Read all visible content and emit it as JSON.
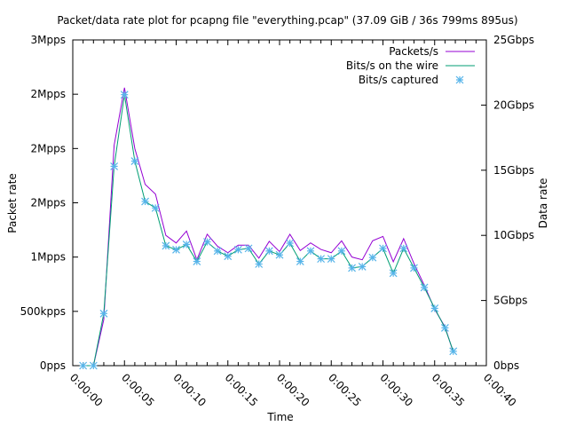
{
  "chart_data": {
    "type": "line",
    "title": "Packet/data rate plot for pcapng file \"everything.pcap\" (37.09 GiB / 36s 799ms 895us)",
    "xlabel": "Time",
    "ylabel": "Packet rate",
    "y2label": "Data rate",
    "xlim": [
      0,
      40
    ],
    "ylim": [
      0,
      3000000
    ],
    "y2lim": [
      0,
      25
    ],
    "grid": false,
    "legend_position": "top-right",
    "x_ticks": [
      0,
      5,
      10,
      15,
      20,
      25,
      30,
      35,
      40
    ],
    "x_tick_labels": [
      "0:00:00",
      "0:00:05",
      "0:00:10",
      "0:00:15",
      "0:00:20",
      "0:00:25",
      "0:00:30",
      "0:00:35",
      "0:00:40"
    ],
    "y_ticks": [
      0,
      500000,
      1000000,
      1500000,
      2000000,
      2500000,
      3000000
    ],
    "y_tick_labels": [
      "0pps",
      "500kpps",
      "1Mpps",
      "2Mpps",
      "2Mpps",
      "2Mpps",
      "3Mpps"
    ],
    "y2_ticks": [
      0,
      5,
      10,
      15,
      20,
      25
    ],
    "y2_tick_labels": [
      "0bps",
      "5Gbps",
      "10Gbps",
      "15Gbps",
      "20Gbps",
      "25Gbps"
    ],
    "x": [
      1,
      2,
      3,
      4,
      5,
      6,
      7,
      8,
      9,
      10,
      11,
      12,
      13,
      14,
      15,
      16,
      17,
      18,
      19,
      20,
      21,
      22,
      23,
      24,
      25,
      26,
      27,
      28,
      29,
      30,
      31,
      32,
      33,
      34,
      35,
      36,
      36.8
    ],
    "series": [
      {
        "name": "Packets/s",
        "axis": "y",
        "color": "#9400d3",
        "style": "line",
        "values": [
          0,
          0,
          425000,
          2030000,
          2560000,
          2000000,
          1670000,
          1580000,
          1200000,
          1130000,
          1240000,
          975000,
          1210000,
          1100000,
          1040000,
          1110000,
          1110000,
          990000,
          1145000,
          1050000,
          1210000,
          1060000,
          1130000,
          1070000,
          1040000,
          1150000,
          1000000,
          975000,
          1150000,
          1190000,
          957000,
          1170000,
          940000,
          740000,
          520000,
          357000,
          125000
        ]
      },
      {
        "name": "Bits/s on the wire",
        "axis": "y2",
        "unit": "Gbps",
        "color": "#009e73",
        "style": "line",
        "values": [
          0,
          0,
          4.0,
          15.3,
          20.8,
          15.7,
          12.6,
          12.1,
          9.2,
          8.9,
          9.3,
          8.0,
          9.5,
          8.8,
          8.4,
          8.9,
          9.0,
          7.8,
          8.8,
          8.5,
          9.4,
          8.0,
          8.8,
          8.2,
          8.2,
          8.8,
          7.5,
          7.6,
          8.3,
          9.0,
          7.1,
          9.0,
          7.5,
          6.0,
          4.4,
          2.9,
          1.1
        ]
      },
      {
        "name": "Bits/s captured",
        "axis": "y2",
        "unit": "Gbps",
        "color": "#56b4e9",
        "style": "points",
        "values": [
          0,
          0,
          4.0,
          15.3,
          20.8,
          15.7,
          12.6,
          12.1,
          9.2,
          8.9,
          9.3,
          8.0,
          9.5,
          8.8,
          8.4,
          8.9,
          9.0,
          7.8,
          8.8,
          8.5,
          9.4,
          8.0,
          8.8,
          8.2,
          8.2,
          8.8,
          7.5,
          7.6,
          8.3,
          9.0,
          7.1,
          9.0,
          7.5,
          6.0,
          4.4,
          2.9,
          1.1
        ]
      }
    ]
  }
}
